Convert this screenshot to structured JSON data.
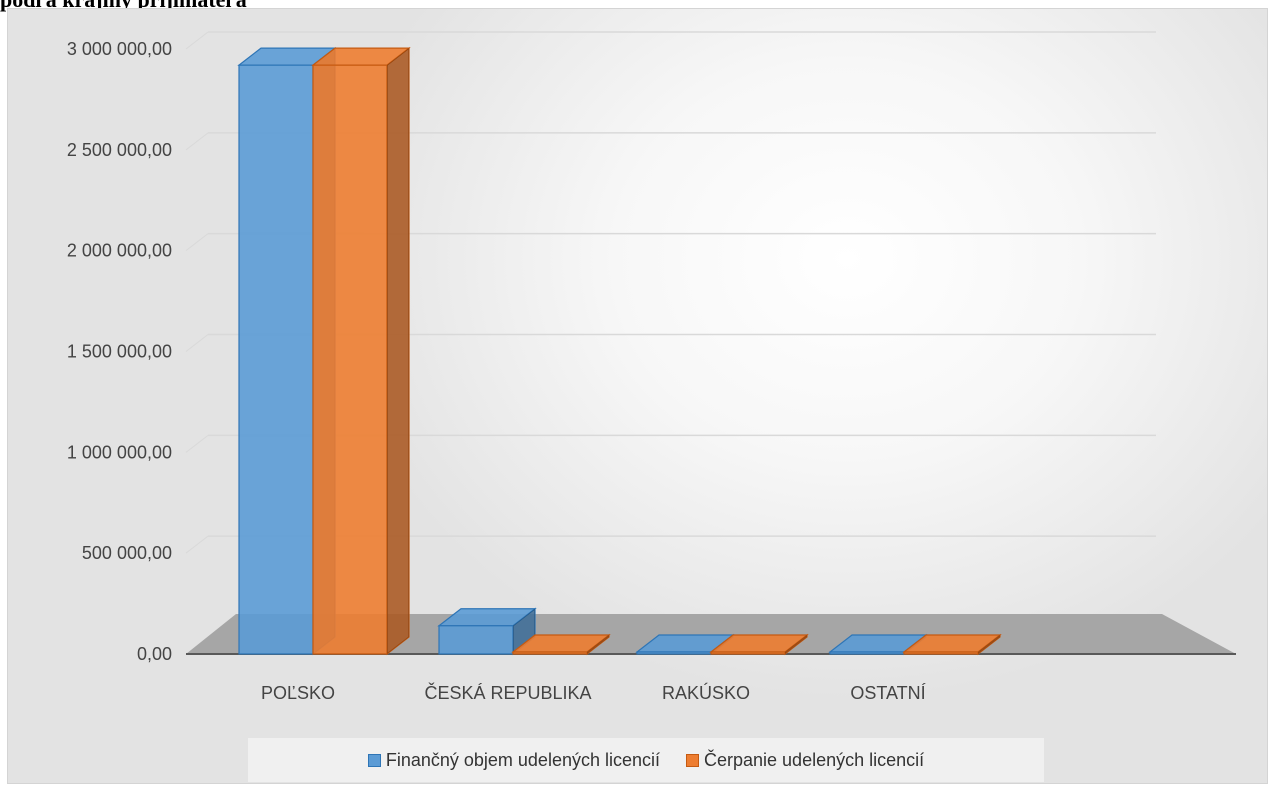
{
  "heading": "podľa krajiny prijímateľa",
  "chart_data": {
    "type": "bar",
    "title": "",
    "xlabel": "",
    "ylabel": "",
    "categories": [
      "POĽSKO",
      "ČESKÁ REPUBLIKA",
      "RAKÚSKO",
      "OSTATNÍ"
    ],
    "series": [
      {
        "name": "Finančný objem udelených licencií",
        "values": [
          2920000,
          140000,
          0,
          0
        ]
      },
      {
        "name": "Čerpanie udelených licencií",
        "values": [
          2920000,
          0,
          0,
          0
        ]
      }
    ],
    "ylim": [
      0,
      3000000
    ],
    "yticks": [
      "0,00",
      "500 000,00",
      "1 000 000,00",
      "1 500 000,00",
      "2 000 000,00",
      "2 500 000,00",
      "3 000 000,00"
    ],
    "grid": true,
    "legend_position": "bottom",
    "colors": {
      "series1": "#5b9bd5",
      "series2": "#ed7d31",
      "series1_edge": "#2e75b6",
      "series2_edge": "#c55a11"
    },
    "style": "3d-clustered-column"
  }
}
